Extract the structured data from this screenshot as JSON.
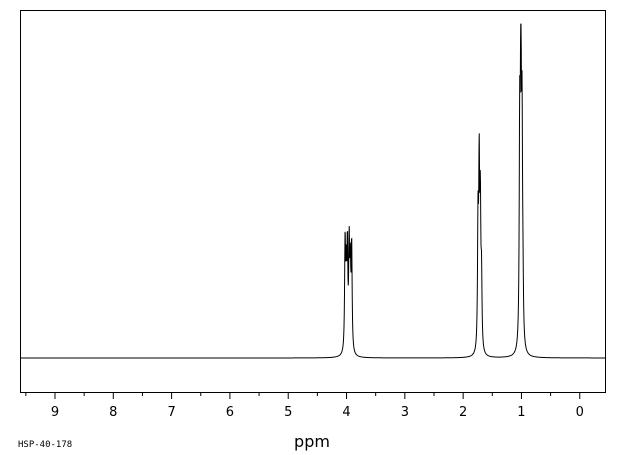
{
  "chart_data": {
    "type": "line",
    "title": "",
    "xlabel": "ppm",
    "ylabel": "",
    "sample_code": "HSP-40-178",
    "x_axis_reversed": true,
    "xlim": [
      9.6,
      -0.45
    ],
    "ylim": [
      0,
      1.0
    ],
    "major_ticks": [
      9,
      8,
      7,
      6,
      5,
      4,
      3,
      2,
      1,
      0
    ],
    "tick_labels": [
      "9",
      "8",
      "7",
      "6",
      "5",
      "4",
      "3",
      "2",
      "1",
      "0"
    ],
    "grid": false,
    "legend": "none",
    "peaks": [
      {
        "ppm": 4.025,
        "height": 0.34
      },
      {
        "ppm": 4.005,
        "height": 0.22
      },
      {
        "ppm": 3.985,
        "height": 0.31
      },
      {
        "ppm": 3.955,
        "height": 0.32
      },
      {
        "ppm": 3.935,
        "height": 0.24
      },
      {
        "ppm": 3.912,
        "height": 0.33
      },
      {
        "ppm": 1.745,
        "height": 0.4
      },
      {
        "ppm": 1.725,
        "height": 0.55
      },
      {
        "ppm": 1.705,
        "height": 0.43
      },
      {
        "ppm": 1.685,
        "height": 0.22
      },
      {
        "ppm": 1.03,
        "height": 0.66
      },
      {
        "ppm": 1.01,
        "height": 1.0
      },
      {
        "ppm": 0.99,
        "height": 0.64
      },
      {
        "ppm": 0.975,
        "height": 0.15
      }
    ],
    "colors": {
      "trace": "#000000",
      "frame": "#000000",
      "background": "#ffffff"
    }
  }
}
